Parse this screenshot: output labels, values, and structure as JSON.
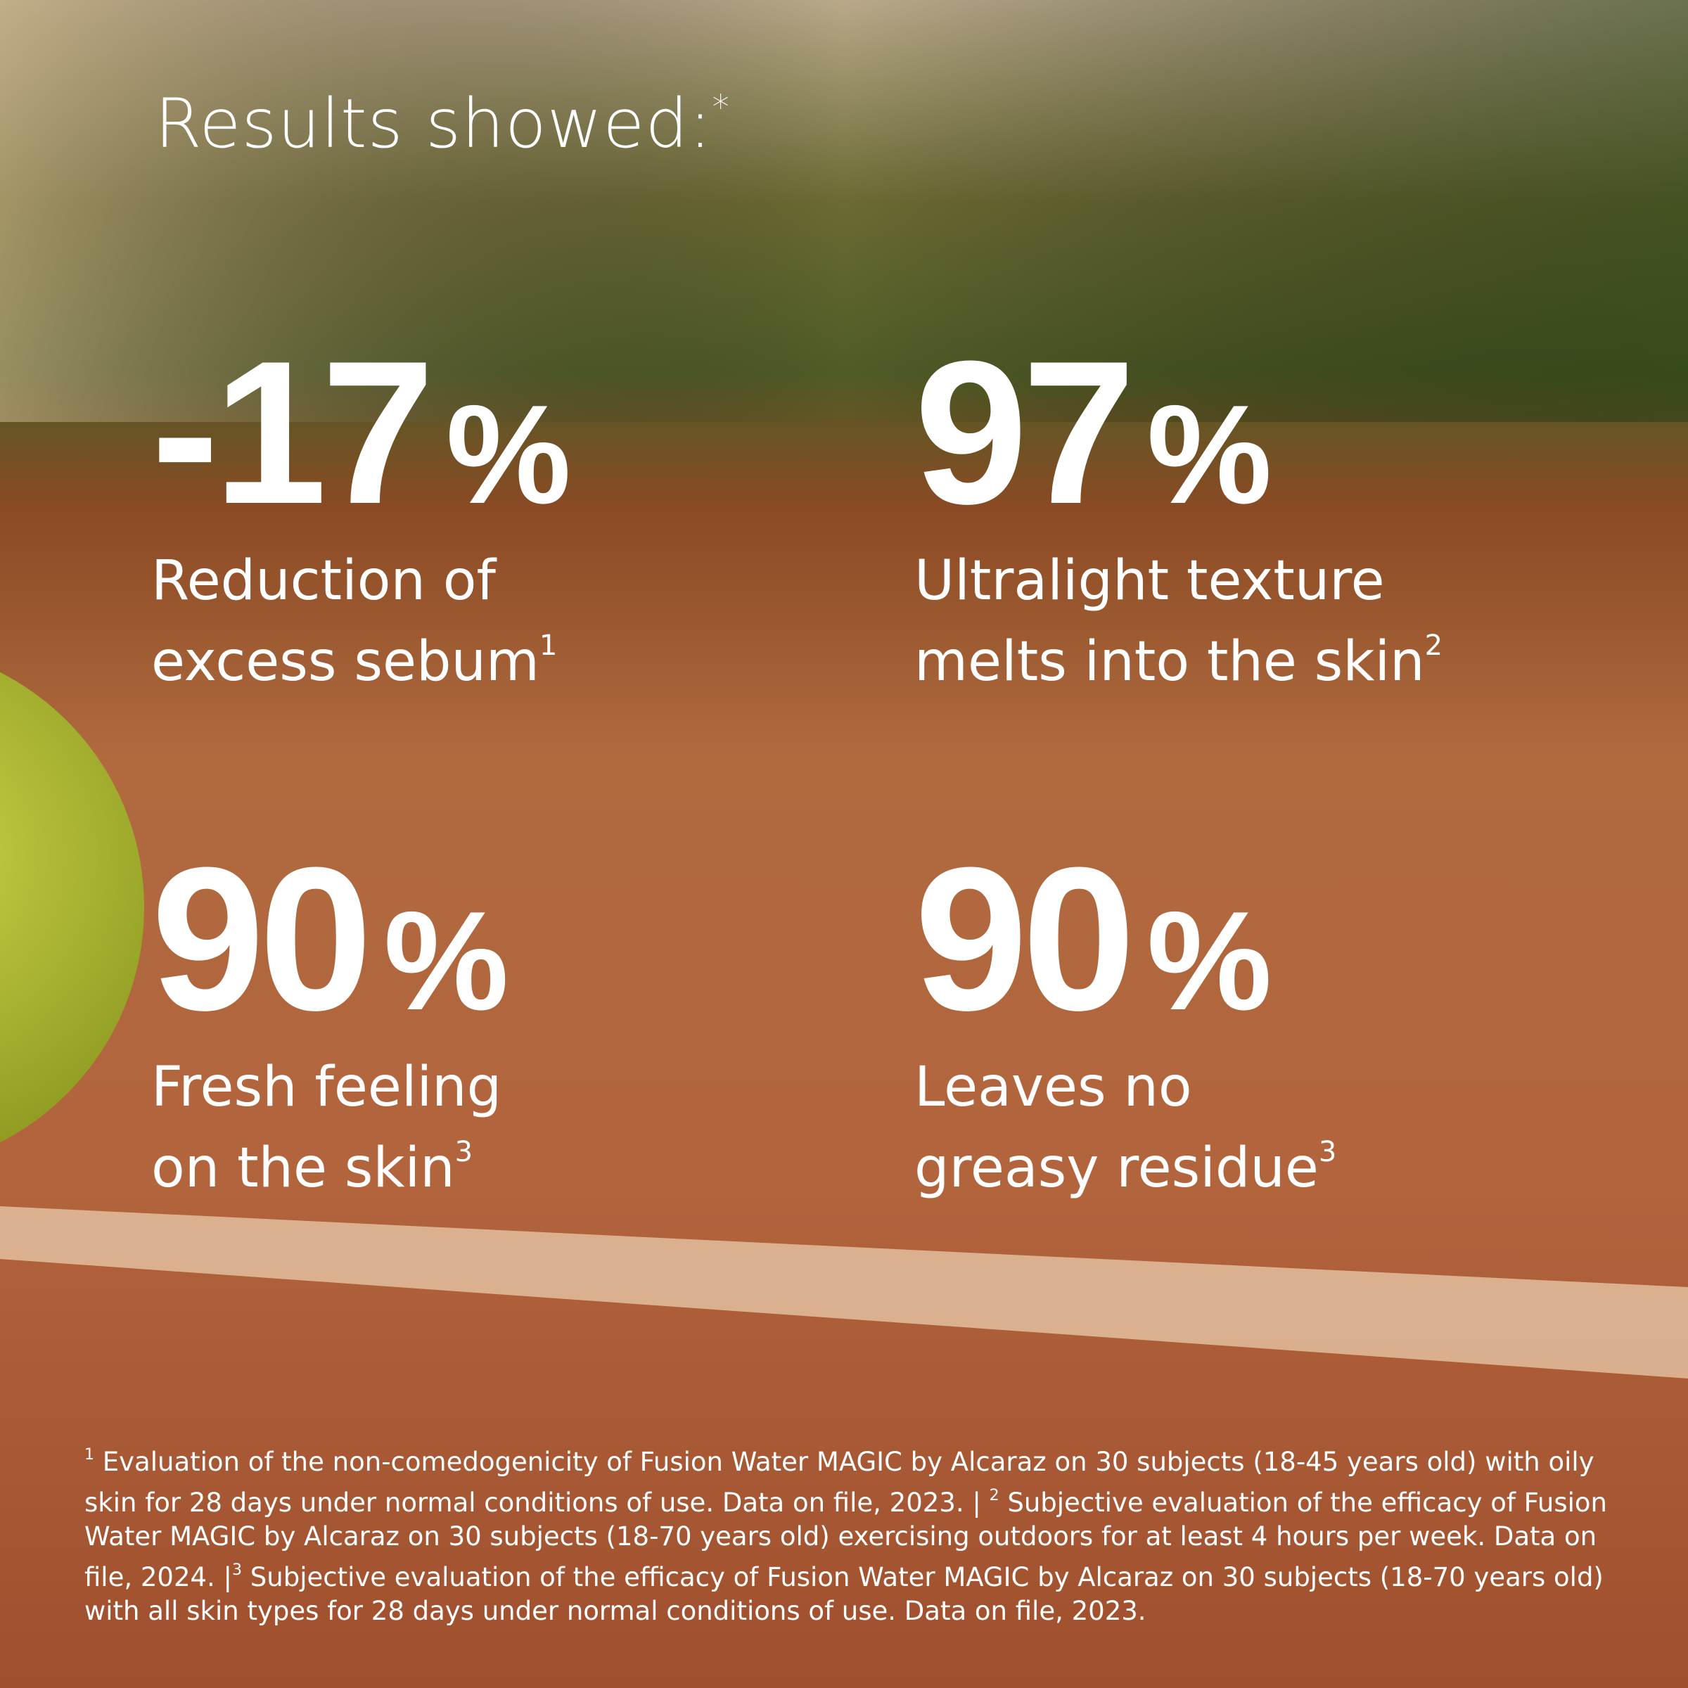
{
  "title": {
    "text": "Results showed:",
    "sup": "*"
  },
  "stats": [
    {
      "number": "-17",
      "unit": "%",
      "lines": [
        "Reduction of",
        "excess sebum"
      ],
      "sup": "1"
    },
    {
      "number": "97",
      "unit": "%",
      "lines": [
        "Ultralight texture",
        "melts into the skin"
      ],
      "sup": "2"
    },
    {
      "number": "90",
      "unit": "%",
      "lines": [
        "Fresh feeling",
        "on the skin"
      ],
      "sup": "3"
    },
    {
      "number": "90",
      "unit": "%",
      "lines": [
        "Leaves no",
        "greasy residue"
      ],
      "sup": "3"
    }
  ],
  "footnotes": [
    {
      "mark": "1",
      "text": " Evaluation of the non-comedogenicity of Fusion Water MAGIC by Alcaraz on 30 subjects (18-45 years old) with oily skin for 28 days under normal conditions of use. Data on file, 2023. | "
    },
    {
      "mark": "2",
      "text": " Subjective evaluation of the efficacy of Fusion Water MAGIC by Alcaraz on 30 subjects (18-70 years old) exercising outdoors for at least 4 hours per week. Data on file, 2024. |"
    },
    {
      "mark": "3",
      "text": " Subjective evaluation of the efficacy of Fusion Water MAGIC by Alcaraz on 30 subjects (18-70 years old) with all skin types for 28 days under normal conditions of use. Data on file, 2023."
    }
  ]
}
